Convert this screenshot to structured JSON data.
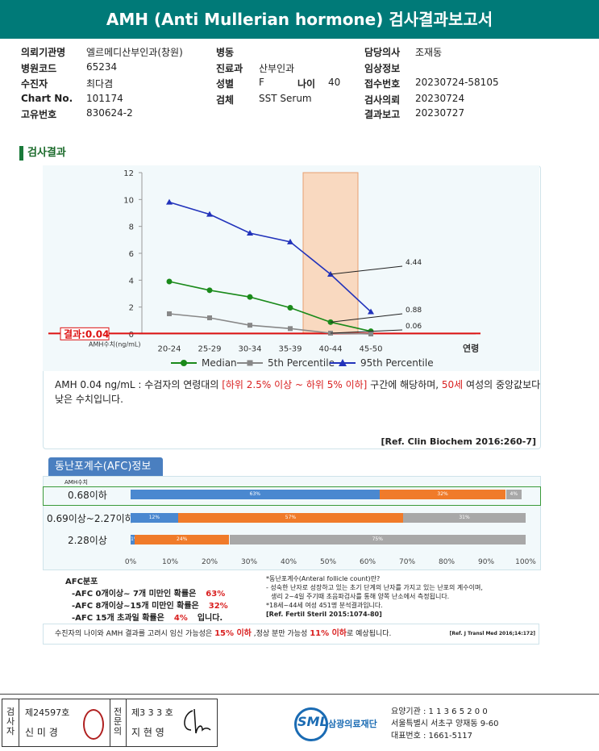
{
  "header": {
    "title": "AMH (Anti Mullerian hormone) 검사결과보고서"
  },
  "info": {
    "col1": [
      {
        "key": "의뢰기관명",
        "val": "엘르메디산부인과(창원)"
      },
      {
        "key": "병원코드",
        "val": "65234"
      },
      {
        "key": "수진자",
        "val": "최다겸"
      },
      {
        "key": "Chart No.",
        "val": "101174"
      },
      {
        "key": "고유번호",
        "val": "830624-2"
      }
    ],
    "col2": [
      {
        "key": "병동",
        "val": ""
      },
      {
        "key": "진료과",
        "val": "산부인과"
      },
      {
        "key": "성별",
        "val": "F"
      },
      {
        "key": "검체",
        "val": "SST Serum"
      }
    ],
    "age_key": "나이",
    "age_val": "40",
    "col3": [
      {
        "key": "담당의사",
        "val": "조재동"
      },
      {
        "key": "임상정보",
        "val": ""
      },
      {
        "key": "접수번호",
        "val": "20230724-58105"
      },
      {
        "key": "검사의뢰",
        "val": "20230724"
      },
      {
        "key": "결과보고",
        "val": "20230727"
      }
    ]
  },
  "section_title": "검사결과",
  "chart_data": {
    "type": "line",
    "categories": [
      "20-24",
      "25-29",
      "30-34",
      "35-39",
      "40-44",
      "45-50"
    ],
    "x_suffix": "연령",
    "ylabel": "AMH수치(ng/mL)",
    "ylim": [
      0,
      12
    ],
    "yticks": [
      "0",
      "2",
      "4",
      "6",
      "8",
      "10",
      "12"
    ],
    "highlight_category": "40-44",
    "result_label": "결과:0.04",
    "result_value": 0.04,
    "series": [
      {
        "name": "Median",
        "color": "#1a8a1a",
        "marker": "circle",
        "values": [
          3.9,
          3.25,
          2.75,
          1.95,
          0.88,
          0.2
        ]
      },
      {
        "name": "5th Percentile",
        "color": "#888888",
        "marker": "square",
        "values": [
          1.5,
          1.2,
          0.65,
          0.4,
          0.06,
          0.0
        ]
      },
      {
        "name": "95th Percentile",
        "color": "#2233bb",
        "marker": "triangle",
        "values": [
          9.8,
          8.9,
          7.5,
          6.85,
          4.44,
          1.65
        ]
      }
    ],
    "annotations": [
      "4.44",
      "0.88",
      "0.06"
    ]
  },
  "result": {
    "t1": "AMH  0.04 ng/mL : 수검자의 연령대의 ",
    "t2": "[하위 2.5% 이상 ~ 하위 5% 이하]",
    "t3": " 구간에 해당하며, ",
    "t4": "50세",
    "t5": " 여성의 중앙값보다",
    "t6": "낮은 수치입니다.",
    "ref": "[Ref. Clin Biochem 2016:260-7]"
  },
  "afc": {
    "tab": "동난포계수(AFC)정보",
    "amh_header": "AMH수치",
    "rows": [
      {
        "label": "0.68이하",
        "segs": [
          {
            "v": 63,
            "t": "63%",
            "c": "#4a88d0"
          },
          {
            "v": 32,
            "t": "32%",
            "c": "#f07b2a"
          },
          {
            "v": 4,
            "t": "4%",
            "c": "#a8a8a8"
          }
        ]
      },
      {
        "label": "0.69이상~2.27이하",
        "segs": [
          {
            "v": 12,
            "t": "12%",
            "c": "#4a88d0"
          },
          {
            "v": 57,
            "t": "57%",
            "c": "#f07b2a"
          },
          {
            "v": 31,
            "t": "31%",
            "c": "#a8a8a8"
          }
        ]
      },
      {
        "label": "2.28이상",
        "segs": [
          {
            "v": 1,
            "t": "1%",
            "c": "#4a88d0"
          },
          {
            "v": 24,
            "t": "24%",
            "c": "#f07b2a"
          },
          {
            "v": 75,
            "t": "75%",
            "c": "#a8a8a8"
          }
        ]
      }
    ],
    "ticks": [
      "0%",
      "10%",
      "20%",
      "30%",
      "40%",
      "50%",
      "60%",
      "70%",
      "80%",
      "90%",
      "100%"
    ],
    "dist_title": "AFC분포",
    "dist": [
      {
        "label": "-AFC 0개이상~ 7개 미만인 확률은",
        "val": "63%"
      },
      {
        "label": "-AFC 8개이상~15개 미만인 확률은",
        "val": "32%"
      },
      {
        "label": "-AFC 15개 초과일 확률은",
        "val": "4%",
        "tail": "입니다."
      }
    ],
    "note1": "*동난포계수(Anteral follicle count)란?",
    "note2": "- 성숙한 난자로 성장하고 있는 초기 단계의 난자를 가지고 있는 난포의 계수이며,",
    "note3": "  생리 2~4일 주기때 초음파검사를 통해 양쪽 난소에서 측정됩니다.",
    "note4": "*18세~44세 여성 451명 분석결과입니다.",
    "note5": "[Ref. Fertil Steril 2015:1074-80]"
  },
  "pregnancy": {
    "p1": "수진자의 나이와 AMH 결과를 고려시 임신 가능성은",
    "p2": "15% 이하",
    "p3": ",정상 분만 가능성",
    "p4": "11% 이하",
    "p5": "로 예상됩니다.",
    "ref": "[Ref. J Transl Med 2016;14:172]"
  },
  "footer": {
    "v1": "검사자",
    "no1": "제24597호",
    "name1": "신 미 경",
    "v2": "전문의",
    "no2": "제3 3 3 호",
    "name2": "지 현 영",
    "brand": "SML",
    "brand_name": "삼광의료재단",
    "code": "요양기관 : 1 1 3 6 5 2 0 0",
    "addr": "서울특별시 서초구 양재동 9-60",
    "phone": "대표번호 : 1661-5117"
  }
}
